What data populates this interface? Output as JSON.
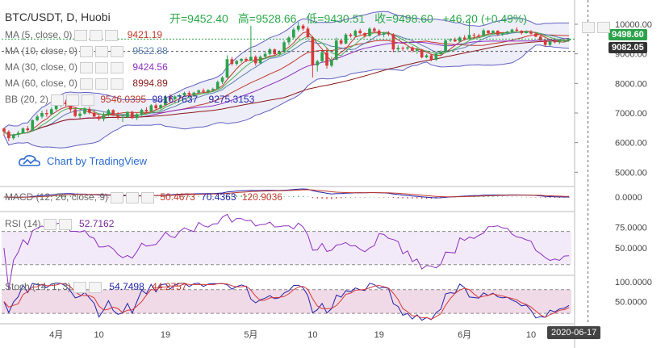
{
  "symbol_line": "BTC/USDT, D, Huobi",
  "ohlc": {
    "open": "开=9452.40",
    "high": "高=9528.66",
    "low": "低=9430.51",
    "close": "收=9498.60",
    "change": "+46.20 (+0.49%)"
  },
  "overlays": [
    {
      "label": "MA (5, close, 0)",
      "value": "9421.19",
      "color": "#c0392b"
    },
    {
      "label": "MA (10, close, 0)",
      "value": "9522.88",
      "color": "#5a7fb0"
    },
    {
      "label": "MA (30, close, 0)",
      "value": "9424.56",
      "color": "#8e2fc0"
    },
    {
      "label": "MA (60, close, 0)",
      "value": "8994.89",
      "color": "#8b1a1a"
    }
  ],
  "bb": {
    "label": "BB (20, 2)",
    "v1": "9546.0395",
    "v2": "9816.7637",
    "v3": "9275.3153"
  },
  "macd": {
    "label": "MACD (12, 26, close, 9)",
    "v1": "50.4673",
    "v2": "70.4363",
    "v3": "120.9036"
  },
  "rsi": {
    "label": "RSI (14)",
    "value": "52.7162"
  },
  "stoch": {
    "label": "Stoch (14, 1, 3)",
    "v1": "54.7498",
    "v2": "44.2757"
  },
  "watermark": "Chart by TradingView",
  "price_tags": {
    "close": "9498.60",
    "ref": "9082.05"
  },
  "cursor_date": "2020-06-17",
  "colors": {
    "up": "#2ca34a",
    "down": "#d93838",
    "bb": "#2222aa",
    "ma_green": "#4caf50"
  },
  "chart_data": {
    "type": "candlestick",
    "title": "BTC/USDT, D, Huobi",
    "price_axis": {
      "ticks": [
        5000,
        6000,
        7000,
        8000,
        9000,
        10000
      ],
      "labels": [
        "5000.00",
        "6000.00",
        "7000.00",
        "8000.00",
        "9000.00",
        "10000.00"
      ],
      "range": [
        4600,
        10600
      ]
    },
    "macd_axis": {
      "labels": [
        "0.0000"
      ]
    },
    "rsi_axis": {
      "labels": [
        "75.0000",
        "50.0000"
      ],
      "range": [
        20,
        90
      ],
      "band": [
        30,
        70
      ]
    },
    "stoch_axis": {
      "labels": [
        "100.0000",
        "50.0000"
      ],
      "range": [
        0,
        110
      ],
      "band": [
        20,
        80
      ]
    },
    "x_labels": [
      {
        "i": 11,
        "text": "4月"
      },
      {
        "i": 20,
        "text": "10"
      },
      {
        "i": 34,
        "text": "19"
      },
      {
        "i": 52,
        "text": "5月"
      },
      {
        "i": 65,
        "text": "10"
      },
      {
        "i": 79,
        "text": "19"
      },
      {
        "i": 97,
        "text": "6月"
      },
      {
        "i": 111,
        "text": "10"
      }
    ],
    "cursor_index": 123,
    "candles": [
      [
        6480,
        6500,
        6240,
        6370
      ],
      [
        6370,
        6420,
        6050,
        6150
      ],
      [
        6150,
        6300,
        6100,
        6270
      ],
      [
        6270,
        6400,
        6180,
        6330
      ],
      [
        6330,
        6520,
        6300,
        6480
      ],
      [
        6480,
        6560,
        6370,
        6420
      ],
      [
        6420,
        6790,
        6400,
        6760
      ],
      [
        6760,
        6950,
        6720,
        6880
      ],
      [
        6880,
        7080,
        6820,
        7000
      ],
      [
        7000,
        7120,
        6870,
        6960
      ],
      [
        6960,
        7200,
        6940,
        7130
      ],
      [
        7130,
        7300,
        7080,
        7260
      ],
      [
        7260,
        7420,
        7200,
        7360
      ],
      [
        7360,
        7450,
        7230,
        7300
      ],
      [
        7300,
        7340,
        7020,
        7120
      ],
      [
        7120,
        7200,
        6860,
        6900
      ],
      [
        6900,
        7060,
        6820,
        6980
      ],
      [
        6980,
        7200,
        6940,
        7140
      ],
      [
        7140,
        7220,
        6960,
        7010
      ],
      [
        7010,
        7120,
        6830,
        6880
      ],
      [
        6880,
        6960,
        6740,
        6800
      ],
      [
        6800,
        7020,
        6720,
        6930
      ],
      [
        6930,
        7140,
        6880,
        7100
      ],
      [
        7100,
        7130,
        6900,
        6920
      ],
      [
        6920,
        7030,
        6780,
        6850
      ],
      [
        6850,
        6940,
        6700,
        6860
      ],
      [
        6860,
        7060,
        6830,
        7040
      ],
      [
        7040,
        7080,
        6800,
        6830
      ],
      [
        6830,
        7000,
        6760,
        6960
      ],
      [
        6960,
        7150,
        6900,
        7110
      ],
      [
        7110,
        7200,
        7000,
        7060
      ],
      [
        7060,
        7300,
        7040,
        7260
      ],
      [
        7260,
        7320,
        7110,
        7160
      ],
      [
        7160,
        7300,
        7120,
        7270
      ],
      [
        7270,
        7600,
        7250,
        7550
      ],
      [
        7550,
        7640,
        7400,
        7470
      ],
      [
        7470,
        7600,
        7420,
        7560
      ],
      [
        7560,
        7640,
        7480,
        7600
      ],
      [
        7600,
        7720,
        7550,
        7680
      ],
      [
        7680,
        7740,
        7560,
        7620
      ],
      [
        7620,
        7720,
        7560,
        7690
      ],
      [
        7690,
        7800,
        7640,
        7760
      ],
      [
        7760,
        7830,
        7680,
        7720
      ],
      [
        7720,
        7800,
        7660,
        7780
      ],
      [
        7780,
        7860,
        7720,
        7820
      ],
      [
        7820,
        8100,
        7800,
        8050
      ],
      [
        8050,
        8250,
        7980,
        8200
      ],
      [
        8200,
        8950,
        8180,
        8820
      ],
      [
        8820,
        8900,
        8600,
        8660
      ],
      [
        8660,
        8800,
        8600,
        8760
      ],
      [
        8760,
        8850,
        8700,
        8830
      ],
      [
        8830,
        8880,
        8720,
        8780
      ],
      [
        8780,
        9950,
        8750,
        8900
      ],
      [
        8900,
        8950,
        8600,
        8680
      ],
      [
        8680,
        8950,
        8660,
        8900
      ],
      [
        8900,
        9070,
        8850,
        9000
      ],
      [
        9000,
        9200,
        8960,
        9150
      ],
      [
        9150,
        9180,
        8950,
        8990
      ],
      [
        8990,
        9120,
        8940,
        9080
      ],
      [
        9080,
        9450,
        9040,
        9390
      ],
      [
        9390,
        9600,
        9300,
        9550
      ],
      [
        9550,
        9880,
        9500,
        9820
      ],
      [
        9820,
        10080,
        9750,
        9950
      ],
      [
        9950,
        10000,
        9780,
        9850
      ],
      [
        9850,
        9920,
        9500,
        9560
      ],
      [
        9560,
        9600,
        8200,
        8610
      ],
      [
        8610,
        8800,
        8400,
        8750
      ],
      [
        8750,
        9100,
        8700,
        9050
      ],
      [
        9050,
        9200,
        8500,
        8600
      ],
      [
        8600,
        8900,
        8550,
        8800
      ],
      [
        8800,
        9550,
        8780,
        9450
      ],
      [
        9450,
        9500,
        9300,
        9350
      ],
      [
        9350,
        9700,
        9320,
        9650
      ],
      [
        9650,
        9700,
        9550,
        9600
      ],
      [
        9600,
        9820,
        9580,
        9780
      ],
      [
        9780,
        9850,
        9650,
        9700
      ],
      [
        9700,
        9720,
        9550,
        9600
      ],
      [
        9600,
        9900,
        9580,
        9850
      ],
      [
        9850,
        9900,
        9700,
        9780
      ],
      [
        9780,
        9830,
        9600,
        9650
      ],
      [
        9650,
        9740,
        9560,
        9700
      ],
      [
        9700,
        9760,
        9600,
        9660
      ],
      [
        9660,
        9700,
        9050,
        9150
      ],
      [
        9150,
        9300,
        9050,
        9200
      ],
      [
        9200,
        9250,
        9100,
        9180
      ],
      [
        9180,
        9250,
        9120,
        9220
      ],
      [
        9220,
        9260,
        9050,
        9100
      ],
      [
        9100,
        9200,
        9000,
        9150
      ],
      [
        9150,
        9170,
        8850,
        8880
      ],
      [
        8880,
        9000,
        8850,
        8950
      ],
      [
        8950,
        9000,
        8750,
        8800
      ],
      [
        8800,
        9050,
        8760,
        9000
      ],
      [
        9000,
        9120,
        8950,
        9080
      ],
      [
        9080,
        9500,
        9050,
        9450
      ],
      [
        9450,
        9520,
        9400,
        9480
      ],
      [
        9480,
        9550,
        9400,
        9420
      ],
      [
        9420,
        9600,
        9380,
        9550
      ],
      [
        9550,
        9630,
        9450,
        9500
      ],
      [
        9500,
        10200,
        9480,
        9640
      ],
      [
        9640,
        9700,
        9550,
        9620
      ],
      [
        9620,
        9680,
        9550,
        9600
      ],
      [
        9600,
        9850,
        9580,
        9790
      ],
      [
        9790,
        9800,
        9650,
        9700
      ],
      [
        9700,
        9800,
        9680,
        9780
      ],
      [
        9780,
        9800,
        9600,
        9650
      ],
      [
        9650,
        9720,
        9600,
        9690
      ],
      [
        9690,
        9780,
        9650,
        9750
      ],
      [
        9750,
        9850,
        9700,
        9820
      ],
      [
        9820,
        9900,
        9750,
        9780
      ],
      [
        9780,
        9800,
        9650,
        9700
      ],
      [
        9700,
        9790,
        9680,
        9760
      ],
      [
        9760,
        9800,
        9650,
        9680
      ],
      [
        9680,
        9740,
        9560,
        9580
      ],
      [
        9580,
        9620,
        9400,
        9460
      ],
      [
        9460,
        9500,
        9230,
        9300
      ],
      [
        9300,
        9450,
        9250,
        9420
      ],
      [
        9420,
        9480,
        9350,
        9390
      ],
      [
        9390,
        9450,
        9330,
        9440
      ],
      [
        9440,
        9480,
        9380,
        9452
      ],
      [
        9452.4,
        9528.66,
        9430.51,
        9498.6
      ]
    ]
  }
}
